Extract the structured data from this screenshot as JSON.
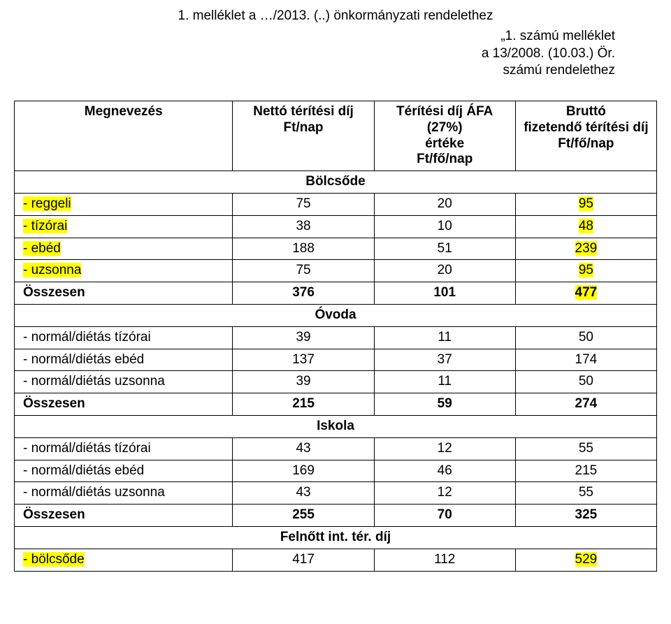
{
  "heading": {
    "line1": "1. melléklet a …/2013. (..) önkormányzati rendelethez",
    "subline1": "„1. számú melléklet",
    "subline2": "a 13/2008. (10.03.) Ör.",
    "subline3": "számú rendelethez"
  },
  "table": {
    "header": {
      "c1": "Megnevezés",
      "c2": "Nettó térítési díj\nFt/nap",
      "c3": "Térítési díj ÁFA\n(27%)\nértéke\nFt/fő/nap",
      "c4": "Bruttó\nfizetendő térítési díj\nFt/fő/nap"
    },
    "sections": [
      {
        "title": "Bölcsőde",
        "rows": [
          {
            "label": "- reggeli",
            "hl_label": true,
            "c2": "75",
            "c3": "20",
            "c4": "95",
            "hl_c4": true
          },
          {
            "label": "- tízórai",
            "hl_label": true,
            "c2": "38",
            "c3": "10",
            "c4": "48",
            "hl_c4": true
          },
          {
            "label": "- ebéd",
            "hl_label": true,
            "c2": "188",
            "c3": "51",
            "c4": "239",
            "hl_c4": true
          },
          {
            "label": "- uzsonna",
            "hl_label": true,
            "c2": "75",
            "c3": "20",
            "c4": "95",
            "hl_c4": true
          },
          {
            "label": "Összesen",
            "bold": true,
            "c2": "376",
            "c3": "101",
            "c4": "477",
            "hl_c4": true
          }
        ]
      },
      {
        "title": "Óvoda",
        "rows": [
          {
            "label": "- normál/diétás tízórai",
            "c2": "39",
            "c3": "11",
            "c4": "50"
          },
          {
            "label": "- normál/diétás ebéd",
            "c2": "137",
            "c3": "37",
            "c4": "174"
          },
          {
            "label": "- normál/diétás uzsonna",
            "c2": "39",
            "c3": "11",
            "c4": "50"
          },
          {
            "label": "Összesen",
            "bold": true,
            "c2": "215",
            "c3": "59",
            "c4": "274"
          }
        ]
      },
      {
        "title": "Iskola",
        "rows": [
          {
            "label": "- normál/diétás tízórai",
            "c2": "43",
            "c3": "12",
            "c4": "55"
          },
          {
            "label": "- normál/diétás ebéd",
            "c2": "169",
            "c3": "46",
            "c4": "215"
          },
          {
            "label": "- normál/diétás uzsonna",
            "c2": "43",
            "c3": "12",
            "c4": "55"
          },
          {
            "label": "Összesen",
            "bold": true,
            "c2": "255",
            "c3": "70",
            "c4": "325"
          }
        ]
      },
      {
        "title": "Felnőtt int. tér. díj",
        "rows": [
          {
            "label": "- bölcsőde",
            "hl_label": true,
            "c2": "417",
            "c3": "112",
            "c4": "529",
            "hl_c4": true
          }
        ]
      }
    ]
  },
  "style": {
    "highlight_color": "#ffff00",
    "text_color": "#000000",
    "border_color": "#000000",
    "background_color": "#ffffff",
    "font_family": "Arial",
    "font_size_pt": 14
  }
}
